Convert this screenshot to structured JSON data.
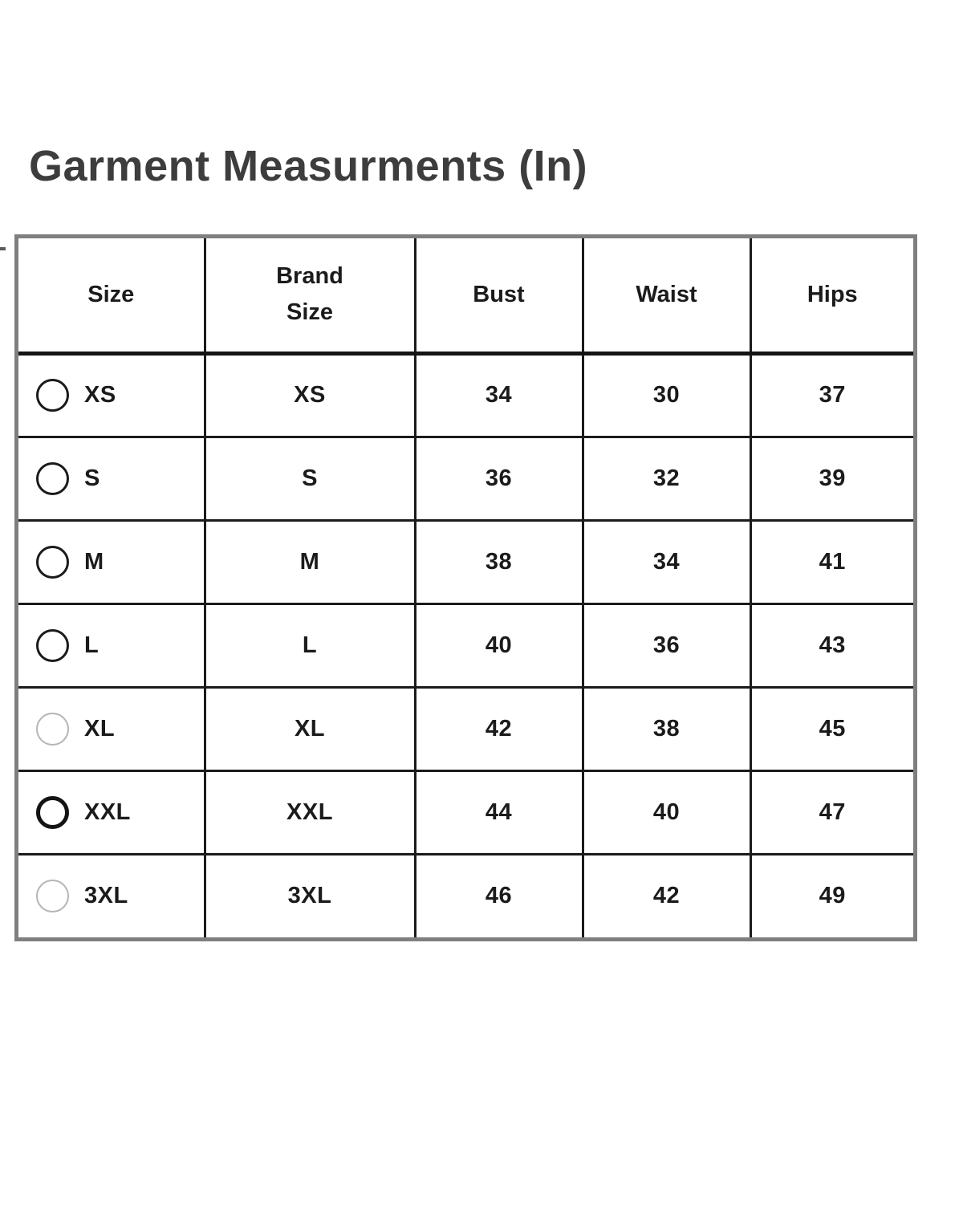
{
  "page": {
    "title": "Garment Measurments (In)"
  },
  "table": {
    "headers": [
      {
        "id": "size",
        "label": "Size"
      },
      {
        "id": "brand-size",
        "label": "Brand\nSize"
      },
      {
        "id": "bust",
        "label": "Bust"
      },
      {
        "id": "waist",
        "label": "Waist"
      },
      {
        "id": "hips",
        "label": "Hips"
      }
    ],
    "rows": [
      {
        "size": "XS",
        "brand_size": "XS",
        "bust": "34",
        "waist": "30",
        "hips": "37",
        "radio_state": "default"
      },
      {
        "size": "S",
        "brand_size": "S",
        "bust": "36",
        "waist": "32",
        "hips": "39",
        "radio_state": "default"
      },
      {
        "size": "M",
        "brand_size": "M",
        "bust": "38",
        "waist": "34",
        "hips": "41",
        "radio_state": "default"
      },
      {
        "size": "L",
        "brand_size": "L",
        "bust": "40",
        "waist": "36",
        "hips": "43",
        "radio_state": "default"
      },
      {
        "size": "XL",
        "brand_size": "XL",
        "bust": "42",
        "waist": "38",
        "hips": "45",
        "radio_state": "dimmed"
      },
      {
        "size": "XXL",
        "brand_size": "XXL",
        "bust": "44",
        "waist": "40",
        "hips": "47",
        "radio_state": "bold"
      },
      {
        "size": "3XL",
        "brand_size": "3XL",
        "bust": "46",
        "waist": "42",
        "hips": "49",
        "radio_state": "dimmed"
      }
    ]
  },
  "colors": {
    "title_text": "#3d3d3d",
    "table_text": "#1b1b1b",
    "outer_border": "#7f7f7f",
    "inner_border": "#1b1b1b",
    "radio_default": "#1b1b1b",
    "radio_dimmed": "#b5b5b5"
  }
}
